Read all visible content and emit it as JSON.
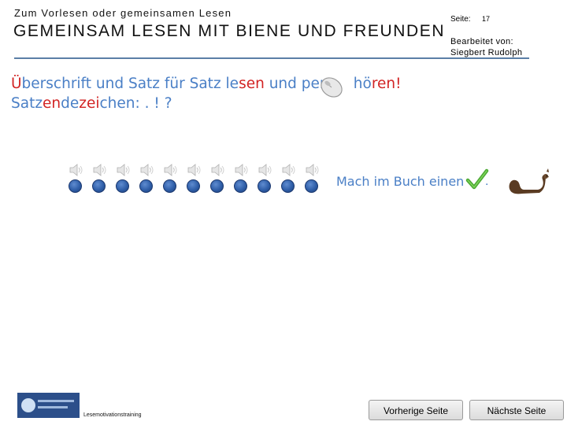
{
  "header": {
    "subtitle": "Zum Vorlesen oder gemeinsamen Lesen",
    "title": "GEMEINSAM LESEN MIT BIENE UND FREUNDEN",
    "page_label": "Seite:",
    "page_number": "17",
    "edited_label": "Bearbeitet von:",
    "editor": "Siegbert Rudolph"
  },
  "instruction": {
    "line1_parts": [
      {
        "text": "Ü",
        "color": "red"
      },
      {
        "text": "berschrift und Satz für Satz le",
        "color": "blue"
      },
      {
        "text": "sen",
        "color": "red"
      },
      {
        "text": " und per",
        "color": "blue"
      },
      {
        "text": "      hö",
        "color": "blue"
      },
      {
        "text": "ren!",
        "color": "red"
      }
    ],
    "line2_parts": [
      {
        "text": "Satz",
        "color": "blue"
      },
      {
        "text": "en",
        "color": "red"
      },
      {
        "text": "de",
        "color": "blue"
      },
      {
        "text": "zei",
        "color": "red"
      },
      {
        "text": "chen: . ! ?",
        "color": "blue"
      }
    ],
    "mouse_icon": "mouse-icon"
  },
  "audio": {
    "count": 11,
    "speaker_icon": "speaker-icon",
    "dot_icon": "play-dot-icon"
  },
  "book_hint": {
    "text": "Mach im Buch einen",
    "check_icon": "checkmark-icon",
    "period": ".",
    "squirrel_icon": "squirrel-icon"
  },
  "footer": {
    "logo_icon": "logo-icon",
    "training_text": "Lesemotivationstraining",
    "prev_button": "Vorherige Seite",
    "next_button": "Nächste Seite"
  },
  "colors": {
    "blue_text": "#4a7fc6",
    "red_text": "#d22424",
    "rule": "#5b7fa6",
    "dot": "#2f5ea8"
  }
}
